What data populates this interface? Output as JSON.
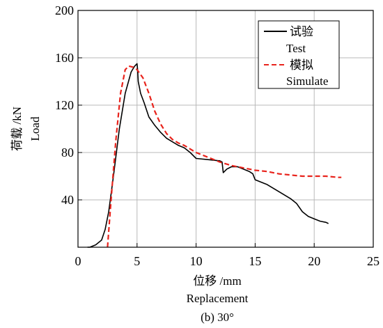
{
  "chart_data": {
    "type": "line",
    "title": "",
    "caption": "(b) 30°",
    "xlabel": "位移 /mm",
    "xlabel_en": "Replacement",
    "ylabel": "荷载 /kN",
    "ylabel_en": "Load",
    "xlim": [
      0,
      25
    ],
    "ylim": [
      0,
      200
    ],
    "xticks": [
      0,
      5,
      10,
      15,
      20,
      25
    ],
    "yticks": [
      40,
      80,
      120,
      160,
      200
    ],
    "xtick_labels": [
      "0",
      "5",
      "10",
      "15",
      "20",
      "25"
    ],
    "ytick_labels": [
      "40",
      "80",
      "120",
      "160",
      "200"
    ],
    "grid": true,
    "legend_position": "top-right",
    "series": [
      {
        "name": "试验",
        "name_en": "Test",
        "color": "#000000",
        "style": "solid",
        "x": [
          0.8,
          1.0,
          1.5,
          2.0,
          2.3,
          2.6,
          3.0,
          3.5,
          4.0,
          4.5,
          4.8,
          5.0,
          5.05,
          5.1,
          5.3,
          5.6,
          6.0,
          6.5,
          7.0,
          7.5,
          8.0,
          8.5,
          9.0,
          9.5,
          10.0,
          11.0,
          12.0,
          12.2,
          12.3,
          12.6,
          13.0,
          13.5,
          14.0,
          14.5,
          14.8,
          15.0,
          16.0,
          17.0,
          18.0,
          18.5,
          19.0,
          19.5,
          20.0,
          20.5,
          21.0,
          21.2
        ],
        "y": [
          0,
          0,
          2,
          6,
          15,
          30,
          60,
          100,
          130,
          148,
          153,
          155,
          150,
          140,
          130,
          122,
          110,
          103,
          97,
          92,
          89,
          86,
          84,
          80,
          75,
          74,
          73,
          72,
          63,
          66,
          68,
          68,
          66,
          64,
          62,
          57,
          53,
          47,
          41,
          37,
          30,
          26,
          24,
          22,
          21,
          20
        ]
      },
      {
        "name": "模拟",
        "name_en": "Simulate",
        "color": "#e8231c",
        "style": "dashed",
        "x": [
          2.5,
          2.8,
          3.2,
          3.6,
          4.0,
          4.3,
          4.7,
          5.0,
          5.5,
          6.0,
          6.5,
          7.0,
          7.5,
          8.0,
          8.5,
          9.0,
          10.0,
          11.0,
          12.0,
          13.0,
          14.0,
          15.0,
          16.0,
          17.0,
          18.0,
          19.0,
          20.0,
          21.0,
          22.0,
          22.3
        ],
        "y": [
          0,
          40,
          90,
          130,
          150,
          153,
          152,
          150,
          143,
          130,
          115,
          104,
          96,
          91,
          88,
          86,
          80,
          76,
          72,
          69,
          67,
          65,
          64,
          62,
          61,
          60,
          60,
          60,
          59,
          59
        ]
      }
    ]
  }
}
